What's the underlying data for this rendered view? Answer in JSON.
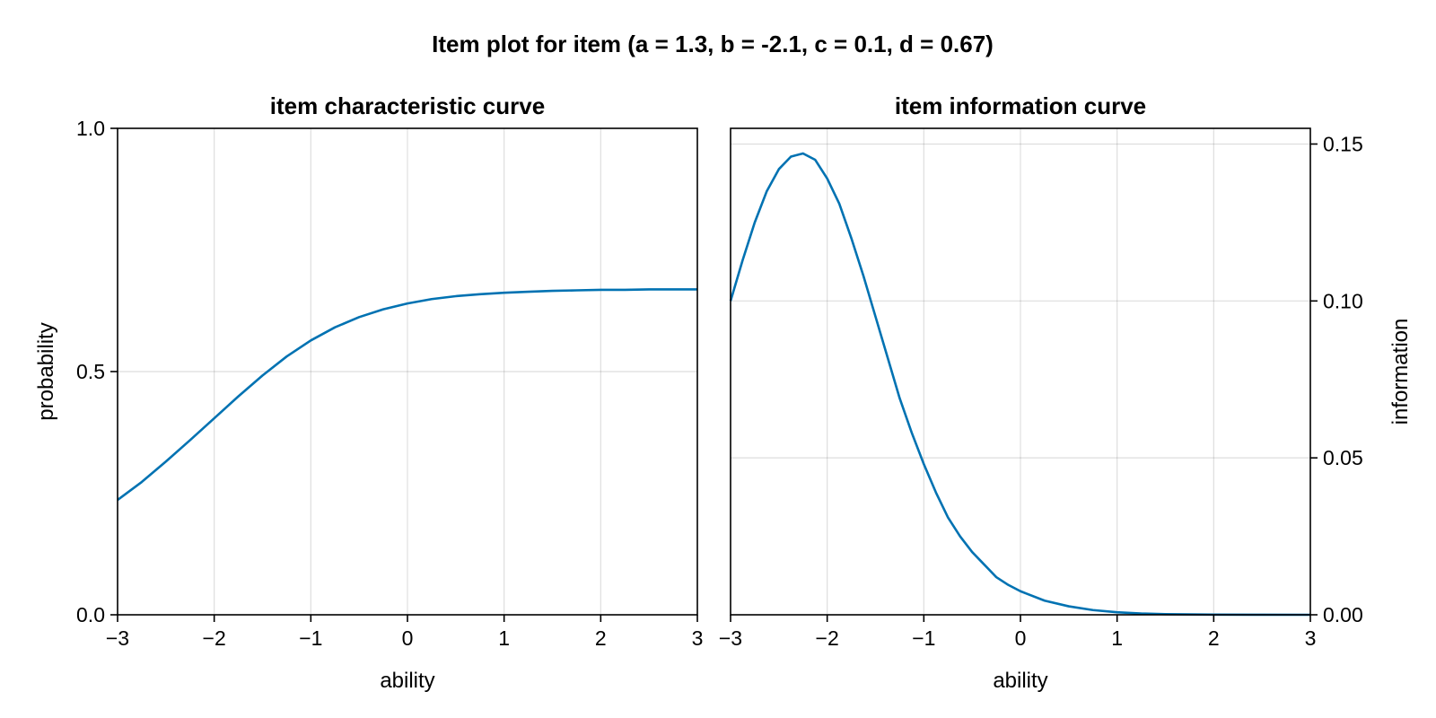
{
  "figure": {
    "title": "Item plot for item (a = 1.3, b = -2.1, c = 0.1, d = 0.67)"
  },
  "chart_data": [
    {
      "type": "line",
      "title": "item characteristic curve",
      "xlabel": "ability",
      "ylabel": "probability",
      "xlim": [
        -3,
        3
      ],
      "ylim": [
        0,
        1
      ],
      "x_ticks": [
        -3,
        -2,
        -1,
        0,
        1,
        2,
        3
      ],
      "x_tick_labels": [
        "−3",
        "−2",
        "−1",
        "0",
        "1",
        "2",
        "3"
      ],
      "y_ticks": [
        0,
        0.5,
        1
      ],
      "y_tick_labels": [
        "0.0",
        "0.5",
        "1.0"
      ],
      "y_axis_side": "left",
      "grid": true,
      "series": [
        {
          "color": "#0072b2",
          "x": [
            -3,
            -2.75,
            -2.5,
            -2.25,
            -2,
            -1.75,
            -1.5,
            -1.25,
            -1,
            -0.75,
            -0.5,
            -0.25,
            0,
            0.25,
            0.5,
            0.75,
            1,
            1.25,
            1.5,
            1.75,
            2,
            2.25,
            2.5,
            2.75,
            3
          ],
          "y": [
            0.236,
            0.273,
            0.315,
            0.359,
            0.404,
            0.449,
            0.492,
            0.531,
            0.564,
            0.591,
            0.612,
            0.628,
            0.64,
            0.649,
            0.655,
            0.659,
            0.662,
            0.664,
            0.666,
            0.667,
            0.668,
            0.668,
            0.669,
            0.669,
            0.669
          ]
        }
      ]
    },
    {
      "type": "line",
      "title": "item information curve",
      "xlabel": "ability",
      "ylabel": "information",
      "xlim": [
        -3,
        3
      ],
      "ylim": [
        0,
        0.155
      ],
      "x_ticks": [
        -3,
        -2,
        -1,
        0,
        1,
        2,
        3
      ],
      "x_tick_labels": [
        "−3",
        "−2",
        "−1",
        "0",
        "1",
        "2",
        "3"
      ],
      "y_ticks": [
        0,
        0.05,
        0.1,
        0.15
      ],
      "y_tick_labels": [
        "0.00",
        "0.05",
        "0.10",
        "0.15"
      ],
      "y_axis_side": "right",
      "grid": true,
      "series": [
        {
          "color": "#0072b2",
          "x": [
            -3,
            -2.875,
            -2.75,
            -2.625,
            -2.5,
            -2.375,
            -2.25,
            -2.125,
            -2,
            -1.875,
            -1.75,
            -1.625,
            -1.5,
            -1.375,
            -1.25,
            -1.125,
            -1,
            -0.875,
            -0.75,
            -0.625,
            -0.5,
            -0.375,
            -0.25,
            -0.125,
            0,
            0.25,
            0.5,
            0.75,
            1,
            1.25,
            1.5,
            2,
            2.5,
            3
          ],
          "y": [
            0.1,
            0.113,
            0.125,
            0.135,
            0.142,
            0.146,
            0.147,
            0.145,
            0.139,
            0.131,
            0.12,
            0.108,
            0.095,
            0.082,
            0.069,
            0.058,
            0.048,
            0.039,
            0.031,
            0.025,
            0.02,
            0.016,
            0.012,
            0.0095,
            0.0075,
            0.0045,
            0.0027,
            0.0015,
            0.0008,
            0.0004,
            0.0002,
            5e-05,
            1e-05,
            2e-06
          ]
        }
      ]
    }
  ]
}
